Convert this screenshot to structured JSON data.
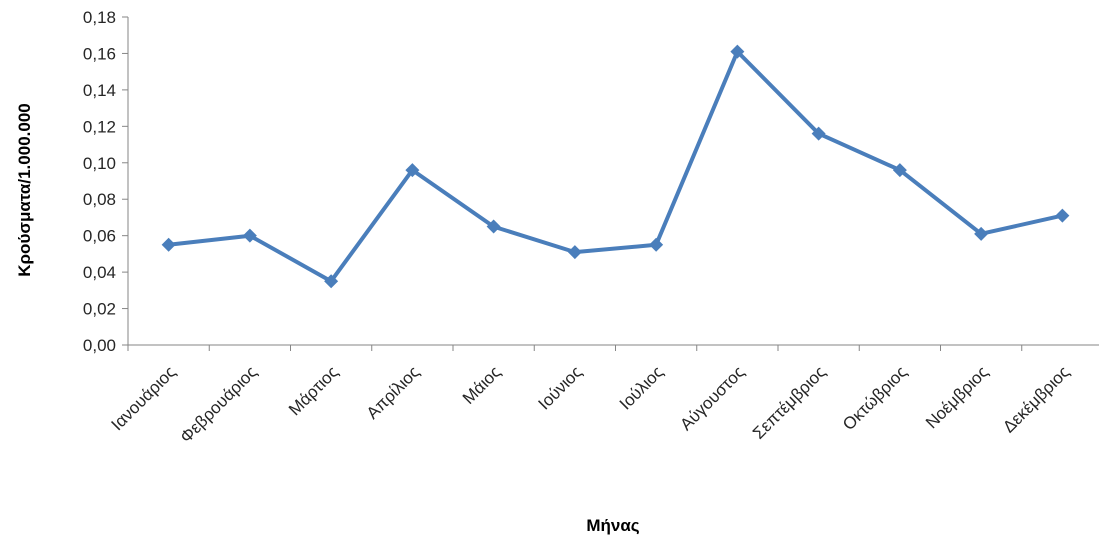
{
  "chart_data": {
    "type": "line",
    "title": "",
    "xlabel": "Μήνας",
    "ylabel": "Κρούσματα/1.000.000",
    "ylim": [
      0,
      0.18
    ],
    "ystep": 0.02,
    "ytick_labels": [
      "0,00",
      "0,02",
      "0,04",
      "0,06",
      "0,08",
      "0,10",
      "0,12",
      "0,14",
      "0,16",
      "0,18"
    ],
    "grid": false,
    "legend": "none",
    "categories": [
      "Ιανουάριος",
      "Φεβρουάριος",
      "Μάρτιος",
      "Απρίλιος",
      "Μάιος",
      "Ιούνιος",
      "Ιούλιος",
      "Αύγουστος",
      "Σεπτέμβριος",
      "Οκτώβριος",
      "Νοέμβριος",
      "Δεκέμβριος"
    ],
    "series": [
      {
        "values": [
          0.055,
          0.06,
          0.035,
          0.096,
          0.065,
          0.051,
          0.055,
          0.161,
          0.116,
          0.096,
          0.061,
          0.071
        ],
        "color": "#4a7ebb"
      }
    ],
    "axis_color": "#868686"
  }
}
